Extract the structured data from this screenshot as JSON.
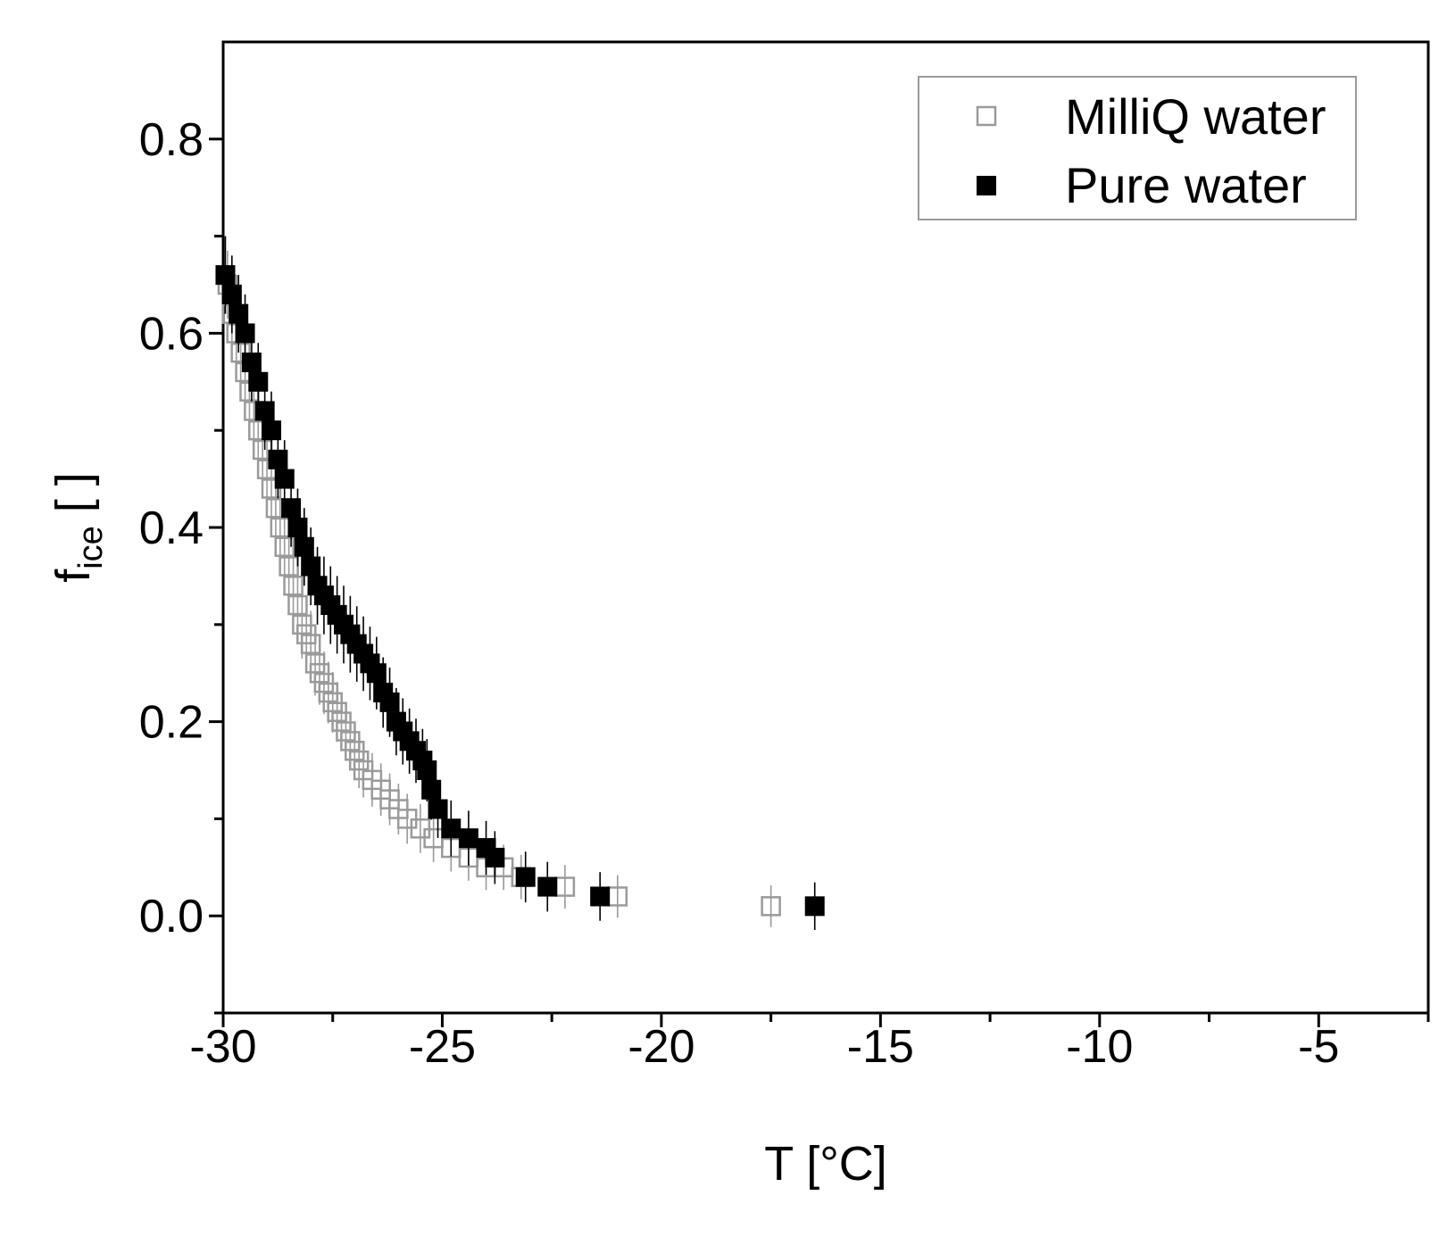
{
  "chart_data": {
    "type": "scatter",
    "title": "",
    "xlabel": "T [°C]",
    "ylabel": {
      "main": "f",
      "subscript": "ice",
      "unit": " [ ]"
    },
    "xlim": [
      -30,
      -2.5
    ],
    "ylim": [
      -0.1,
      0.9
    ],
    "xticks": [
      -30,
      -25,
      -20,
      -15,
      -10,
      -5
    ],
    "xtick_labels": [
      "-30",
      "-25",
      "-20",
      "-15",
      "-10",
      "-5"
    ],
    "yticks": [
      0.0,
      0.2,
      0.4,
      0.6,
      0.8
    ],
    "ytick_labels": [
      "0.0",
      "0.2",
      "0.4",
      "0.6",
      "0.8"
    ],
    "grid": false,
    "legend": {
      "position": "top-right",
      "show_frame": true
    },
    "series": [
      {
        "name": "MilliQ water",
        "marker": "open-square",
        "color": "#9a9a9a",
        "x": [
          -29.9,
          -29.8,
          -29.7,
          -29.6,
          -29.5,
          -29.4,
          -29.3,
          -29.2,
          -29.1,
          -29.0,
          -28.9,
          -28.8,
          -28.7,
          -28.6,
          -28.5,
          -28.4,
          -28.3,
          -28.2,
          -28.1,
          -28.0,
          -27.9,
          -27.8,
          -27.7,
          -27.6,
          -27.5,
          -27.4,
          -27.3,
          -27.2,
          -27.1,
          -27.0,
          -26.9,
          -26.8,
          -26.6,
          -26.4,
          -26.2,
          -26.0,
          -25.8,
          -25.5,
          -25.2,
          -24.8,
          -24.4,
          -24.0,
          -23.6,
          -23.2,
          -22.2,
          -21.0,
          -17.5
        ],
        "y": [
          0.65,
          0.62,
          0.6,
          0.58,
          0.56,
          0.54,
          0.52,
          0.5,
          0.48,
          0.46,
          0.44,
          0.42,
          0.4,
          0.38,
          0.36,
          0.34,
          0.32,
          0.3,
          0.29,
          0.28,
          0.26,
          0.25,
          0.24,
          0.23,
          0.22,
          0.21,
          0.2,
          0.19,
          0.18,
          0.17,
          0.16,
          0.15,
          0.14,
          0.13,
          0.12,
          0.11,
          0.1,
          0.09,
          0.08,
          0.07,
          0.06,
          0.05,
          0.05,
          0.04,
          0.03,
          0.02,
          0.01
        ],
        "error": 0.035
      },
      {
        "name": "Pure water",
        "marker": "filled-square",
        "color": "#000000",
        "x": [
          -29.95,
          -29.8,
          -29.65,
          -29.5,
          -29.35,
          -29.2,
          -29.05,
          -28.9,
          -28.75,
          -28.6,
          -28.45,
          -28.3,
          -28.15,
          -28.0,
          -27.85,
          -27.7,
          -27.55,
          -27.4,
          -27.25,
          -27.1,
          -26.95,
          -26.8,
          -26.65,
          -26.5,
          -26.35,
          -26.2,
          -26.05,
          -25.9,
          -25.75,
          -25.6,
          -25.45,
          -25.35,
          -25.25,
          -25.1,
          -24.8,
          -24.4,
          -24.0,
          -23.8,
          -23.1,
          -22.6,
          -21.4,
          -16.5
        ],
        "y": [
          0.66,
          0.64,
          0.62,
          0.6,
          0.57,
          0.55,
          0.52,
          0.5,
          0.47,
          0.45,
          0.42,
          0.4,
          0.38,
          0.36,
          0.34,
          0.33,
          0.32,
          0.31,
          0.3,
          0.29,
          0.28,
          0.27,
          0.26,
          0.25,
          0.23,
          0.22,
          0.2,
          0.19,
          0.18,
          0.17,
          0.16,
          0.15,
          0.13,
          0.11,
          0.09,
          0.08,
          0.07,
          0.06,
          0.04,
          0.03,
          0.02,
          0.01
        ],
        "error": 0.04
      }
    ]
  }
}
